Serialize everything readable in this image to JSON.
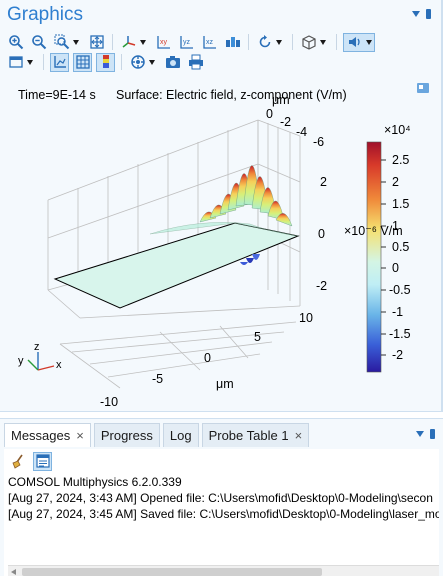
{
  "graphics": {
    "title": "Graphics",
    "time_label": "Time=9E-14 s",
    "surface_label": "Surface: Electric field, z-component (V/m)",
    "colorbar": {
      "exponent_label": "×10⁴",
      "ticks": [
        "2.5",
        "2",
        "1.5",
        "1",
        "0.5",
        "0",
        "-0.5",
        "-1",
        "-1.5",
        "-2"
      ],
      "overlay_label": "×10⁻⁶ V/m"
    },
    "axes": {
      "unit_top": "μm",
      "unit_bottom": "μm",
      "top_ticks": [
        "0",
        "-2",
        "-4",
        "-6"
      ],
      "z_ticks": [
        "2",
        "0",
        "-2"
      ],
      "right_ticks": [
        "10",
        "5"
      ],
      "bottom_ticks": [
        "0",
        "-5",
        "-10"
      ]
    },
    "triad": {
      "x": "x",
      "y": "y",
      "z": "z"
    }
  },
  "messages_panel": {
    "tabs": [
      {
        "label": "Messages",
        "closable": true,
        "active": true
      },
      {
        "label": "Progress",
        "closable": false,
        "active": false
      },
      {
        "label": "Log",
        "closable": false,
        "active": false
      },
      {
        "label": "Probe Table 1",
        "closable": true,
        "active": false
      }
    ],
    "close_glyph": "×",
    "lines": [
      "COMSOL Multiphysics 6.2.0.339",
      "[Aug 27, 2024, 3:43 AM] Opened file: C:\\Users\\mofid\\Desktop\\0-Modeling\\secon",
      "[Aug 27, 2024, 3:45 AM] Saved file: C:\\Users\\mofid\\Desktop\\0-Modeling\\laser_mo"
    ]
  },
  "colors": {
    "accent": "#2f7fd0",
    "panel_bg": "#f4f9fd",
    "plane": "#d8f5ec"
  },
  "icons": [
    "zoom-in-icon",
    "zoom-out-icon",
    "zoom-box-icon",
    "zoom-extents-icon",
    "axis-orientation-icon",
    "xy-view-icon",
    "yz-view-icon",
    "xz-view-icon",
    "rotate-icon",
    "select-scene-icon",
    "speaker-icon",
    "views-icon",
    "grid-icon",
    "table-icon",
    "colorbar-icon",
    "render-icon",
    "camera-icon",
    "print-icon",
    "clear-icon",
    "message-log-icon"
  ]
}
